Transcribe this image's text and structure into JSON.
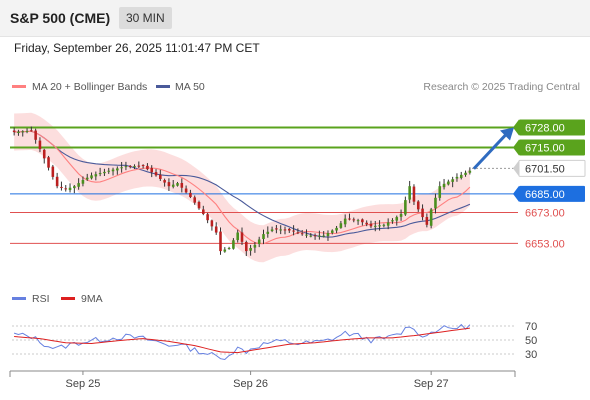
{
  "header": {
    "symbol": "S&P 500 (CME)",
    "interval": "30 MIN",
    "datetime": "Friday, September 26, 2025 11:01:47 PM CET"
  },
  "legend": {
    "ma20_label": "MA 20 + Bollinger Bands",
    "ma50_label": "MA 50",
    "credit": "Research © 2025 Trading Central",
    "rsi_label": "RSI",
    "rsi_ma_label": "9MA"
  },
  "colors": {
    "up": "#4a8f1e",
    "down": "#bb2020",
    "ma20": "#ff8080",
    "bollinger": "#fbd8d8",
    "ma50": "#4a5a9a",
    "resistance": "#5aa31d",
    "support": "#e05050",
    "pivot": "#1d6fe0",
    "last": "#333333",
    "rsi": "#6680e0",
    "rsi_ma": "#dd2020",
    "arrow": "#2f6bc0"
  },
  "chart_data": [
    {
      "type": "candlestick",
      "title": "",
      "x_labels": [
        "Sep 25",
        "Sep 26",
        "Sep 27"
      ],
      "ylim": [
        6628,
        6738
      ],
      "grid": false,
      "legend_position": "top-left",
      "levels": [
        {
          "value": 6728.0,
          "label": "6728.00",
          "kind": "resistance"
        },
        {
          "value": 6715.0,
          "label": "6715.00",
          "kind": "resistance"
        },
        {
          "value": 6701.5,
          "label": "6701.50",
          "kind": "last"
        },
        {
          "value": 6685.0,
          "label": "6685.00",
          "kind": "pivot"
        },
        {
          "value": 6673.0,
          "label": "6673.00",
          "kind": "support"
        },
        {
          "value": 6653.0,
          "label": "6653.00",
          "kind": "support"
        }
      ],
      "anchors": [
        [
          0,
          6725
        ],
        [
          4,
          6726
        ],
        [
          6,
          6714
        ],
        [
          8,
          6702
        ],
        [
          10,
          6690
        ],
        [
          12,
          6688
        ],
        [
          14,
          6690
        ],
        [
          16,
          6694
        ],
        [
          18,
          6697
        ],
        [
          22,
          6700
        ],
        [
          26,
          6703
        ],
        [
          30,
          6703
        ],
        [
          33,
          6697
        ],
        [
          36,
          6690
        ],
        [
          38,
          6692
        ],
        [
          41,
          6683
        ],
        [
          44,
          6672
        ],
        [
          47,
          6660
        ],
        [
          48,
          6648
        ],
        [
          50,
          6650
        ],
        [
          52,
          6660
        ],
        [
          54,
          6648
        ],
        [
          56,
          6652
        ],
        [
          58,
          6659
        ],
        [
          60,
          6662
        ],
        [
          63,
          6662
        ],
        [
          66,
          6660
        ],
        [
          69,
          6658
        ],
        [
          72,
          6658
        ],
        [
          75,
          6663
        ],
        [
          77,
          6669
        ],
        [
          80,
          6668
        ],
        [
          83,
          6664
        ],
        [
          86,
          6665
        ],
        [
          88,
          6668
        ],
        [
          90,
          6672
        ],
        [
          92,
          6690
        ],
        [
          93,
          6680
        ],
        [
          96,
          6665
        ],
        [
          97,
          6675
        ],
        [
          99,
          6690
        ],
        [
          101,
          6693
        ],
        [
          103,
          6696
        ],
        [
          106,
          6700
        ]
      ],
      "bollinger_half_width": 12,
      "ma20_lag": 10,
      "ma50_lag": 26
    },
    {
      "type": "line",
      "title": "",
      "ylim": [
        10,
        90
      ],
      "yticks": [
        70,
        50,
        30
      ],
      "series": [
        {
          "name": "RSI",
          "anchors": [
            [
              0,
              58
            ],
            [
              4,
              55
            ],
            [
              6,
              48
            ],
            [
              8,
              41
            ],
            [
              10,
              38
            ],
            [
              14,
              45
            ],
            [
              18,
              49
            ],
            [
              22,
              52
            ],
            [
              26,
              55
            ],
            [
              30,
              52
            ],
            [
              33,
              48
            ],
            [
              36,
              42
            ],
            [
              38,
              45
            ],
            [
              41,
              38
            ],
            [
              44,
              32
            ],
            [
              47,
              27
            ],
            [
              48,
              22
            ],
            [
              50,
              30
            ],
            [
              52,
              38
            ],
            [
              54,
              34
            ],
            [
              56,
              40
            ],
            [
              58,
              44
            ],
            [
              60,
              47
            ],
            [
              63,
              48
            ],
            [
              66,
              45
            ],
            [
              69,
              46
            ],
            [
              72,
              48
            ],
            [
              75,
              54
            ],
            [
              77,
              60
            ],
            [
              80,
              56
            ],
            [
              83,
              50
            ],
            [
              86,
              52
            ],
            [
              88,
              55
            ],
            [
              90,
              60
            ],
            [
              92,
              72
            ],
            [
              93,
              63
            ],
            [
              96,
              55
            ],
            [
              97,
              62
            ],
            [
              99,
              66
            ],
            [
              101,
              67
            ],
            [
              103,
              68
            ],
            [
              106,
              70
            ]
          ]
        },
        {
          "name": "9MA",
          "anchors": [
            [
              0,
              55
            ],
            [
              6,
              52
            ],
            [
              12,
              46
            ],
            [
              18,
              45
            ],
            [
              24,
              49
            ],
            [
              30,
              52
            ],
            [
              36,
              48
            ],
            [
              42,
              42
            ],
            [
              48,
              33
            ],
            [
              52,
              32
            ],
            [
              58,
              38
            ],
            [
              64,
              44
            ],
            [
              70,
              46
            ],
            [
              76,
              50
            ],
            [
              82,
              53
            ],
            [
              88,
              53
            ],
            [
              94,
              57
            ],
            [
              100,
              62
            ],
            [
              106,
              67
            ]
          ]
        }
      ]
    }
  ]
}
